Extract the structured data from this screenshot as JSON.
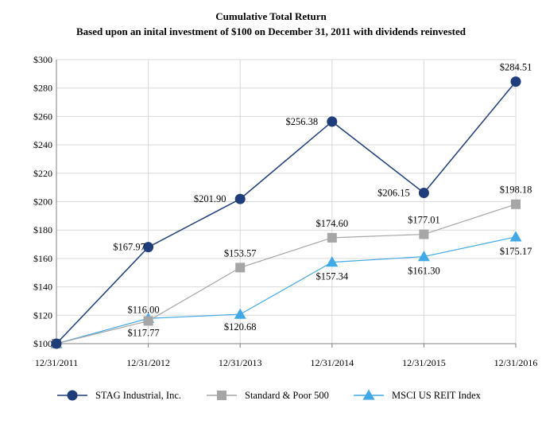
{
  "chart_data": {
    "type": "line",
    "title": "Cumulative Total Return",
    "subtitle": "Based upon an inital investment of $100 on December 31, 2011 with dividends reinvested",
    "xlabel": "",
    "ylabel": "",
    "categories": [
      "12/31/2011",
      "12/31/2012",
      "12/31/2013",
      "12/31/2014",
      "12/31/2015",
      "12/31/2016"
    ],
    "ylim": [
      100,
      300
    ],
    "yticks": [
      100,
      120,
      140,
      160,
      180,
      200,
      220,
      240,
      260,
      280,
      300
    ],
    "ytick_labels": [
      "$100",
      "$120",
      "$140",
      "$160",
      "$180",
      "$200",
      "$220",
      "$240",
      "$260",
      "$280",
      "$300"
    ],
    "grid": true,
    "legend_position": "bottom",
    "series": [
      {
        "name": "STAG Industrial, Inc.",
        "marker": "circle",
        "color": "#1f3d7a",
        "values": [
          100,
          167.97,
          201.9,
          256.38,
          206.15,
          284.51
        ],
        "labels": [
          "",
          "$167.97",
          "$201.90",
          "$256.38",
          "$206.15",
          "$284.51"
        ]
      },
      {
        "name": "Standard & Poor 500",
        "marker": "square",
        "color": "#a6a6a6",
        "values": [
          100,
          116.0,
          153.57,
          174.6,
          177.01,
          198.18
        ],
        "labels": [
          "",
          "$116.00",
          "$153.57",
          "$174.60",
          "$177.01",
          "$198.18"
        ]
      },
      {
        "name": "MSCI US REIT Index",
        "marker": "triangle",
        "color": "#41a9e8",
        "values": [
          100,
          117.77,
          120.68,
          157.34,
          161.3,
          175.17
        ],
        "labels": [
          "",
          "$117.77",
          "$120.68",
          "$157.34",
          "$161.30",
          "$175.17"
        ]
      }
    ]
  }
}
